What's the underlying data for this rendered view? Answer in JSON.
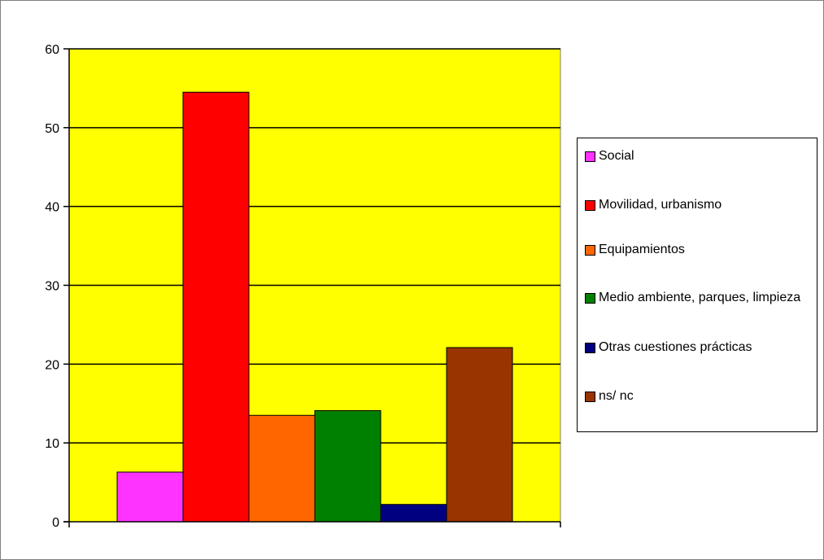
{
  "chart_data": {
    "type": "bar",
    "title": "",
    "xlabel": "",
    "ylabel": "",
    "ylim": [
      0,
      60
    ],
    "yticks": [
      0,
      10,
      20,
      30,
      40,
      50,
      60
    ],
    "grid": true,
    "plot_background": "#ffff00",
    "legend_position": "right",
    "series": [
      {
        "name": "Social",
        "value": 6.3,
        "color": "#ff33ff"
      },
      {
        "name": "Movilidad, urbanismo",
        "value": 54.5,
        "color": "#ff0000"
      },
      {
        "name": "Equipamientos",
        "value": 13.5,
        "color": "#ff6600"
      },
      {
        "name": "Medio ambiente, parques, limpieza",
        "value": 14.1,
        "color": "#008000"
      },
      {
        "name": "Otras cuestiones prácticas",
        "value": 2.2,
        "color": "#000080"
      },
      {
        "name": "ns/ nc",
        "value": 22.1,
        "color": "#993300"
      }
    ]
  }
}
